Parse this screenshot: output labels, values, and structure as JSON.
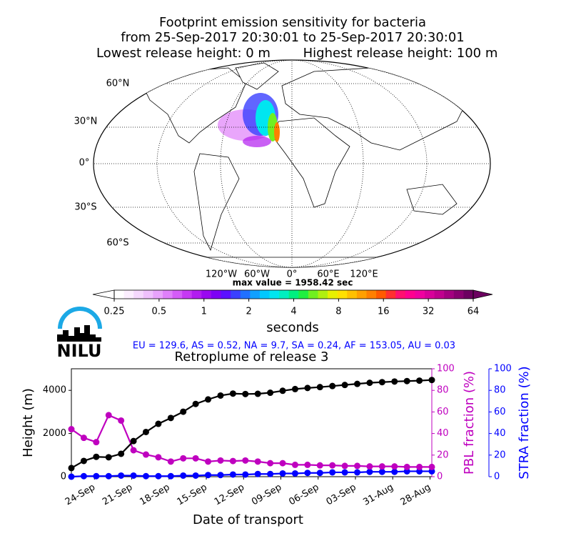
{
  "header": {
    "title": "Footprint emission sensitivity for bacteria",
    "period": "from 25-Sep-2017 20:30:01 to 25-Sep-2017 20:30:01",
    "release_low": "Lowest release height: 0 m",
    "release_high": "Highest release height: 100 m"
  },
  "map": {
    "lat_labels": [
      "60°N",
      "30°N",
      "0°",
      "30°S",
      "60°S"
    ],
    "lon_labels": [
      "120°W",
      "60°W",
      "0°",
      "60°E",
      "120°E"
    ],
    "max_value": "max value = 1958.42 sec"
  },
  "colorbar": {
    "label": "seconds",
    "lim": [
      0.25,
      64
    ],
    "log": true,
    "ticks": [
      0.25,
      0.5,
      1,
      2,
      4,
      8,
      16,
      32,
      64
    ],
    "colors": [
      "#ffffff",
      "#fbeefe",
      "#f5d8fd",
      "#efc0fc",
      "#e8a3fb",
      "#df80fa",
      "#d45cf8",
      "#c638f4",
      "#b21cf0",
      "#9a08f0",
      "#7e00f5",
      "#5c10ff",
      "#3a40ff",
      "#2070ff",
      "#10a0ff",
      "#00c8ff",
      "#00e6f0",
      "#00f0c0",
      "#00f080",
      "#20f040",
      "#70f020",
      "#b0f010",
      "#e8f000",
      "#ffe000",
      "#ffc000",
      "#ffa000",
      "#ff8000",
      "#ff5a00",
      "#ff3030",
      "#ff1070",
      "#ff0090",
      "#f000a0",
      "#d8009a",
      "#c0008e",
      "#a40080",
      "#880070",
      "#6c0060"
    ]
  },
  "logo": {
    "text": "NILU"
  },
  "summary": "EU = 129.6,  AS = 0.52,  NA = 9.7,  SA = 0.24,  AF = 153.05,  AU = 0.03",
  "chart_data": {
    "type": "line",
    "title": "Retroplume of release 3",
    "xlabel": "Date of transport",
    "ylabel": "Height (m)",
    "y2label": "PBL fraction (%)",
    "y3label": "STRA fraction (%)",
    "x": [
      "2017-09-25T20:30",
      "2017-09-24T20:30",
      "2017-09-23T20:30",
      "2017-09-22T20:30",
      "2017-09-21T20:30",
      "2017-09-20T20:30",
      "2017-09-19T20:30",
      "2017-09-18T20:30",
      "2017-09-17T20:30",
      "2017-09-16T20:30",
      "2017-09-15T20:30",
      "2017-09-14T20:30",
      "2017-09-13T20:30",
      "2017-09-12T20:30",
      "2017-09-11T20:30",
      "2017-09-10T20:30",
      "2017-09-09T20:30",
      "2017-09-08T20:30",
      "2017-09-07T20:30",
      "2017-09-06T20:30",
      "2017-09-05T20:30",
      "2017-09-04T20:30",
      "2017-09-03T20:30",
      "2017-09-02T20:30",
      "2017-09-01T20:30",
      "2017-08-31T20:30",
      "2017-08-30T20:30",
      "2017-08-29T20:30",
      "2017-08-28T20:30",
      "2017-08-27T20:30"
    ],
    "xlim": [
      "2017-09-25T20:30",
      "2017-08-27T20:30"
    ],
    "xticks": [
      {
        "value": "2017-09-24T00:00",
        "label": "24-Sep"
      },
      {
        "value": "2017-09-21T00:00",
        "label": "21-Sep"
      },
      {
        "value": "2017-09-18T00:00",
        "label": "18-Sep"
      },
      {
        "value": "2017-09-15T00:00",
        "label": "15-Sep"
      },
      {
        "value": "2017-09-12T00:00",
        "label": "12-Sep"
      },
      {
        "value": "2017-09-09T00:00",
        "label": "09-Sep"
      },
      {
        "value": "2017-09-06T00:00",
        "label": "06-Sep"
      },
      {
        "value": "2017-09-03T00:00",
        "label": "03-Sep"
      },
      {
        "value": "2017-08-31T00:00",
        "label": "31-Aug"
      },
      {
        "value": "2017-08-28T00:00",
        "label": "28-Aug"
      }
    ],
    "ylim": [
      0,
      5000
    ],
    "yticks": [
      0,
      2000,
      4000
    ],
    "y2lim": [
      0,
      100
    ],
    "y2ticks": [
      0,
      20,
      40,
      60,
      80,
      100
    ],
    "y2color": "#bf00bf",
    "y3lim": [
      0,
      100
    ],
    "y3ticks": [
      0,
      20,
      40,
      60,
      80,
      100
    ],
    "y3color": "#0000ff",
    "series": [
      {
        "color": "#000000",
        "values": [
          400,
          730,
          920,
          900,
          1060,
          1650,
          2070,
          2450,
          2720,
          3010,
          3370,
          3580,
          3760,
          3850,
          3830,
          3840,
          3890,
          3980,
          4060,
          4110,
          4150,
          4200,
          4250,
          4300,
          4350,
          4380,
          4410,
          4430,
          4450,
          4480
        ]
      },
      {
        "color": "#bf00bf",
        "axis": "y2",
        "values": [
          44,
          36,
          32,
          57,
          52,
          24.5,
          20.5,
          18,
          14,
          17,
          17,
          14,
          15,
          14.5,
          15,
          14,
          12.5,
          12.5,
          11,
          11,
          10.5,
          10.5,
          10,
          10,
          9.5,
          9.5,
          9.5,
          9,
          9,
          9
        ]
      },
      {
        "color": "#0000ff",
        "axis": "y3",
        "values": [
          0,
          0.5,
          0.5,
          0.5,
          1,
          1,
          0.5,
          0.5,
          0.5,
          1,
          1,
          1.5,
          1.5,
          2,
          2,
          2.5,
          2.5,
          3,
          3,
          3.5,
          3.5,
          4,
          4,
          4,
          4.5,
          4.5,
          4.5,
          5,
          5,
          5
        ]
      }
    ]
  }
}
